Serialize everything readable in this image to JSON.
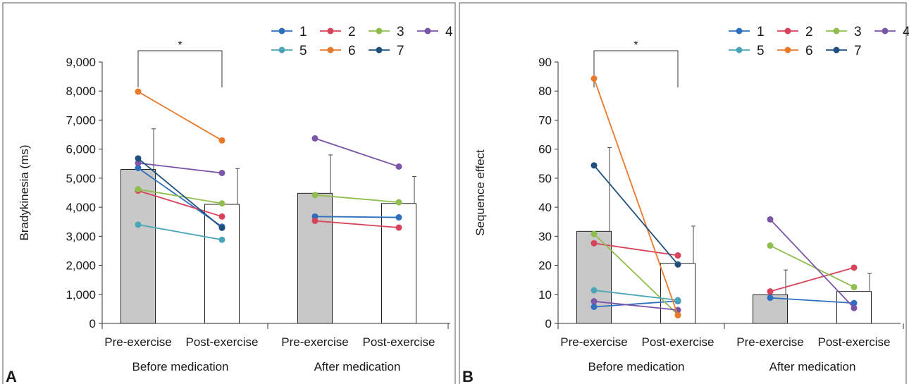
{
  "figure": {
    "panels": [
      "A",
      "B"
    ],
    "legend": [
      "1",
      "2",
      "3",
      "4",
      "5",
      "6",
      "7"
    ],
    "series_colors": [
      "#2e6fbf",
      "#d6435a",
      "#8fbe4e",
      "#7b55a8",
      "#4aa5b8",
      "#e97a2c",
      "#1f4f7c"
    ]
  },
  "chart_data": [
    {
      "type": "bar",
      "panel_label": "A",
      "ylabel": "Bradykinesia (ms)",
      "ylim": [
        0,
        9000
      ],
      "yticks": [
        0,
        1000,
        2000,
        3000,
        4000,
        5000,
        6000,
        7000,
        8000,
        9000
      ],
      "ytick_labels": [
        "0",
        "1,000",
        "2,000",
        "3,000",
        "4,000",
        "5,000",
        "6,000",
        "7,000",
        "8,000",
        "9,000"
      ],
      "categories": [
        "Pre-exercise",
        "Post-exercise",
        "Pre-exercise",
        "Post-exercise"
      ],
      "groups": [
        "Before medication",
        "After medication"
      ],
      "bar_values": [
        5300,
        4100,
        4480,
        4130
      ],
      "bar_fills": [
        "#c8c8c8",
        "#ffffff",
        "#c8c8c8",
        "#ffffff"
      ],
      "error_upper": [
        6700,
        5330,
        5800,
        5060
      ],
      "significance": {
        "from": 0,
        "to": 1,
        "label": "*"
      },
      "series": [
        {
          "name": "1",
          "values": [
            5350,
            3330,
            3680,
            3650
          ]
        },
        {
          "name": "2",
          "values": [
            4570,
            3680,
            3530,
            3300
          ]
        },
        {
          "name": "3",
          "values": [
            4620,
            4130,
            4420,
            4170
          ]
        },
        {
          "name": "4",
          "values": [
            5520,
            5180,
            6370,
            5400
          ]
        },
        {
          "name": "5",
          "values": [
            3400,
            2880,
            null,
            null
          ]
        },
        {
          "name": "6",
          "values": [
            7980,
            6300,
            null,
            null
          ]
        },
        {
          "name": "7",
          "values": [
            5680,
            3290,
            null,
            null
          ]
        }
      ],
      "legend_position": "top-right",
      "grid": false
    },
    {
      "type": "bar",
      "panel_label": "B",
      "ylabel": "Sequence effect",
      "ylim": [
        0,
        90
      ],
      "yticks": [
        0,
        10,
        20,
        30,
        40,
        50,
        60,
        70,
        80,
        90
      ],
      "ytick_labels": [
        "0",
        "10",
        "20",
        "30",
        "40",
        "50",
        "60",
        "70",
        "80",
        "90"
      ],
      "categories": [
        "Pre-exercise",
        "Post-exercise",
        "Pre-exercise",
        "Post-exercise"
      ],
      "groups": [
        "Before medication",
        "After medication"
      ],
      "bar_values": [
        31.7,
        20.7,
        9.9,
        11.0
      ],
      "bar_fills": [
        "#c8c8c8",
        "#ffffff",
        "#c8c8c8",
        "#ffffff"
      ],
      "error_upper": [
        60.5,
        33.5,
        18.4,
        17.2
      ],
      "significance": {
        "from": 0,
        "to": 1,
        "label": "*"
      },
      "series": [
        {
          "name": "1",
          "values": [
            5.7,
            7.7,
            8.8,
            7.0
          ]
        },
        {
          "name": "2",
          "values": [
            27.6,
            23.4,
            11.0,
            19.2
          ]
        },
        {
          "name": "3",
          "values": [
            30.8,
            3.0,
            26.8,
            12.5
          ]
        },
        {
          "name": "4",
          "values": [
            7.6,
            4.6,
            35.8,
            5.3
          ]
        },
        {
          "name": "5",
          "values": [
            11.4,
            8.0,
            null,
            null
          ]
        },
        {
          "name": "6",
          "values": [
            84.3,
            2.8,
            null,
            null
          ]
        },
        {
          "name": "7",
          "values": [
            54.4,
            20.3,
            null,
            null
          ]
        }
      ],
      "legend_position": "top-right",
      "grid": false
    }
  ]
}
